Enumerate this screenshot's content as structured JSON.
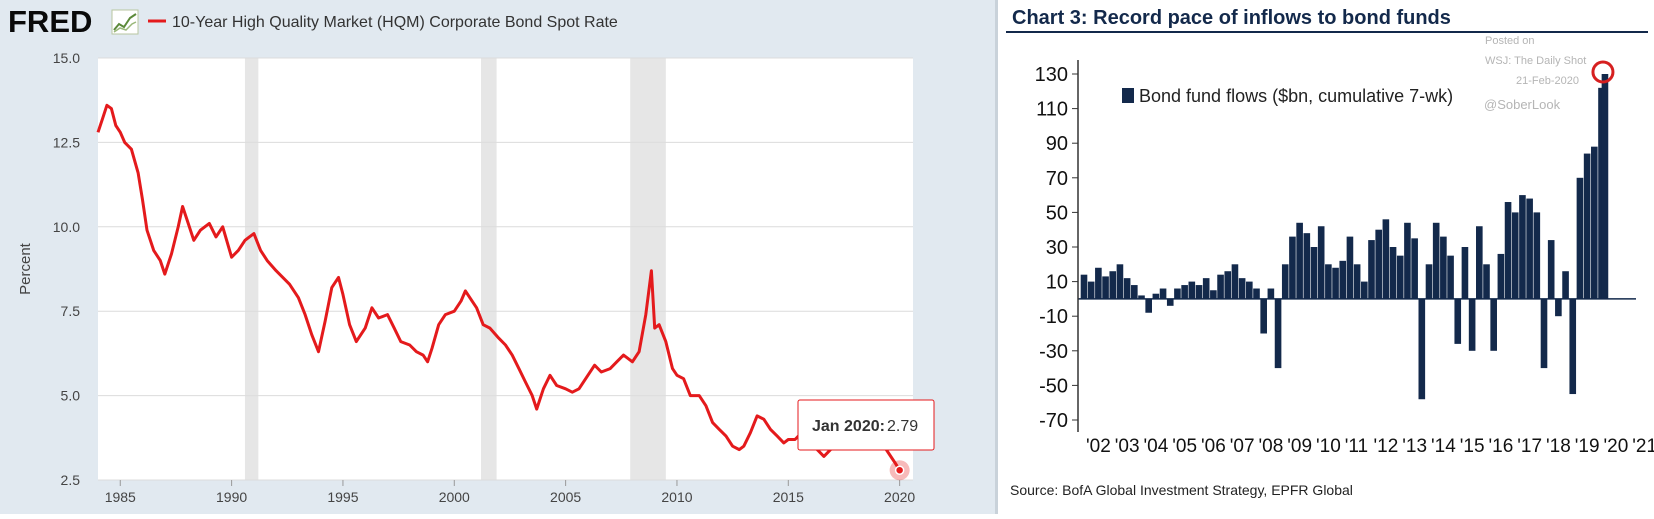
{
  "fred": {
    "logo_text": "FRED",
    "series_title": "10-Year High Quality Market (HQM) Corporate Bond Spot Rate",
    "tooltip": {
      "label": "Jan 2020:",
      "value": "2.79"
    }
  },
  "bofa": {
    "title": "Chart 3: Record pace of inflows to bond funds",
    "legend": "Bond fund flows ($bn, cumulative 7-wk)",
    "watermark": [
      "Posted on",
      "WSJ: The Daily Shot",
      "21-Feb-2020",
      "@SoberLook"
    ],
    "source": "Source:  BofA Global Investment Strategy, EPFR Global"
  },
  "chart_data": [
    {
      "type": "line",
      "title": "10-Year High Quality Market (HQM) Corporate Bond Spot Rate",
      "xlabel": "",
      "ylabel": "Percent",
      "xlim": [
        1984,
        2020.6
      ],
      "ylim": [
        2.5,
        15.0
      ],
      "x_ticks": [
        "1985",
        "1990",
        "1995",
        "2000",
        "2005",
        "2010",
        "2015",
        "2020"
      ],
      "y_ticks": [
        "2.5",
        "5.0",
        "7.5",
        "10.0",
        "12.5",
        "15.0"
      ],
      "grid": true,
      "color": "#e41a1c",
      "recessions": [
        [
          1990.6,
          1991.2
        ],
        [
          2001.2,
          2001.9
        ],
        [
          2007.9,
          2009.5
        ]
      ],
      "series": [
        {
          "x": [
            1984.0,
            1984.2,
            1984.4,
            1984.6,
            1984.8,
            1985.0,
            1985.2,
            1985.5,
            1985.8,
            1986.0,
            1986.2,
            1986.5,
            1986.8,
            1987.0,
            1987.3,
            1987.6,
            1987.8,
            1988.0,
            1988.3,
            1988.6,
            1989.0,
            1989.3,
            1989.6,
            1990.0,
            1990.3,
            1990.6,
            1990.8,
            1991.0,
            1991.3,
            1991.6,
            1992.0,
            1992.3,
            1992.6,
            1993.0,
            1993.3,
            1993.6,
            1993.9,
            1994.2,
            1994.5,
            1994.8,
            1995.0,
            1995.3,
            1995.6,
            1996.0,
            1996.3,
            1996.6,
            1997.0,
            1997.3,
            1997.6,
            1998.0,
            1998.3,
            1998.6,
            1998.8,
            1999.0,
            1999.3,
            1999.6,
            2000.0,
            2000.3,
            2000.5,
            2000.8,
            2001.0,
            2001.3,
            2001.6,
            2002.0,
            2002.3,
            2002.6,
            2002.9,
            2003.2,
            2003.5,
            2003.7,
            2004.0,
            2004.3,
            2004.6,
            2005.0,
            2005.3,
            2005.6,
            2006.0,
            2006.3,
            2006.6,
            2007.0,
            2007.3,
            2007.6,
            2008.0,
            2008.3,
            2008.6,
            2008.85,
            2009.0,
            2009.2,
            2009.5,
            2009.8,
            2010.0,
            2010.3,
            2010.6,
            2011.0,
            2011.3,
            2011.6,
            2011.9,
            2012.2,
            2012.5,
            2012.8,
            2013.0,
            2013.3,
            2013.6,
            2013.9,
            2014.2,
            2014.5,
            2014.8,
            2015.0,
            2015.3,
            2015.6,
            2016.0,
            2016.3,
            2016.6,
            2016.9,
            2017.2,
            2017.5,
            2017.8,
            2018.1,
            2018.4,
            2018.7,
            2018.9,
            2019.2,
            2019.5,
            2019.8,
            2020.0
          ],
          "y": [
            12.8,
            13.2,
            13.6,
            13.5,
            13.0,
            12.8,
            12.5,
            12.3,
            11.6,
            10.8,
            9.9,
            9.3,
            9.0,
            8.6,
            9.2,
            10.0,
            10.6,
            10.2,
            9.6,
            9.9,
            10.1,
            9.7,
            10.0,
            9.1,
            9.3,
            9.6,
            9.7,
            9.8,
            9.3,
            9.0,
            8.7,
            8.5,
            8.3,
            7.9,
            7.4,
            6.8,
            6.3,
            7.2,
            8.2,
            8.5,
            8.0,
            7.1,
            6.6,
            7.0,
            7.6,
            7.3,
            7.4,
            7.0,
            6.6,
            6.5,
            6.3,
            6.2,
            6.0,
            6.4,
            7.1,
            7.4,
            7.5,
            7.8,
            8.1,
            7.8,
            7.6,
            7.1,
            7.0,
            6.7,
            6.5,
            6.2,
            5.8,
            5.4,
            5.0,
            4.6,
            5.2,
            5.6,
            5.3,
            5.2,
            5.1,
            5.2,
            5.6,
            5.9,
            5.7,
            5.8,
            6.0,
            6.2,
            6.0,
            6.3,
            7.4,
            8.7,
            7.0,
            7.1,
            6.6,
            5.8,
            5.6,
            5.5,
            5.0,
            5.0,
            4.7,
            4.2,
            4.0,
            3.8,
            3.5,
            3.4,
            3.5,
            3.9,
            4.4,
            4.3,
            4.0,
            3.8,
            3.6,
            3.7,
            3.7,
            3.9,
            3.8,
            3.4,
            3.2,
            3.4,
            3.6,
            3.5,
            3.6,
            3.7,
            3.8,
            4.0,
            3.9,
            3.6,
            3.3,
            3.0,
            2.79
          ]
        }
      ]
    },
    {
      "type": "bar",
      "title": "Chart 3: Record pace of inflows to bond funds",
      "xlabel": "",
      "ylabel": "",
      "xlim": [
        2002,
        2021.2
      ],
      "ylim": [
        -70,
        130
      ],
      "x_ticks": [
        "'02",
        "'03",
        "'04",
        "'05",
        "'06",
        "'07",
        "'08",
        "'09",
        "'10",
        "'11",
        "'12",
        "'13",
        "'14",
        "'15",
        "'16",
        "'17",
        "'18",
        "'19",
        "'20",
        "'21"
      ],
      "y_ticks": [
        "130",
        "110",
        "90",
        "70",
        "50",
        "30",
        "10",
        "-10",
        "-30",
        "-50",
        "-70"
      ],
      "grid": false,
      "legend": "top-left",
      "color": "#13294b",
      "series": [
        {
          "name": "Bond fund flows ($bn, cumulative 7-wk)",
          "x": [
            2002.0,
            2002.25,
            2002.5,
            2002.75,
            2003.0,
            2003.25,
            2003.5,
            2003.75,
            2004.0,
            2004.25,
            2004.5,
            2004.75,
            2005.0,
            2005.25,
            2005.5,
            2005.75,
            2006.0,
            2006.25,
            2006.5,
            2006.75,
            2007.0,
            2007.25,
            2007.5,
            2007.75,
            2008.0,
            2008.25,
            2008.5,
            2008.75,
            2009.0,
            2009.25,
            2009.5,
            2009.75,
            2010.0,
            2010.25,
            2010.5,
            2010.75,
            2011.0,
            2011.25,
            2011.5,
            2011.75,
            2012.0,
            2012.25,
            2012.5,
            2012.75,
            2013.0,
            2013.25,
            2013.5,
            2013.75,
            2014.0,
            2014.25,
            2014.5,
            2014.75,
            2015.0,
            2015.25,
            2015.5,
            2015.75,
            2016.0,
            2016.25,
            2016.5,
            2016.75,
            2017.0,
            2017.25,
            2017.5,
            2017.75,
            2018.0,
            2018.25,
            2018.5,
            2018.75,
            2019.0,
            2019.25,
            2019.5,
            2019.75,
            2020.0,
            2020.12
          ],
          "values": [
            14,
            10,
            18,
            13,
            16,
            20,
            12,
            8,
            2,
            -8,
            3,
            6,
            -4,
            6,
            8,
            10,
            8,
            12,
            5,
            14,
            16,
            20,
            12,
            10,
            6,
            -20,
            6,
            -40,
            20,
            36,
            44,
            38,
            30,
            42,
            20,
            18,
            22,
            36,
            20,
            10,
            34,
            40,
            46,
            30,
            25,
            44,
            35,
            -58,
            20,
            44,
            36,
            25,
            -26,
            30,
            -30,
            42,
            20,
            -30,
            26,
            56,
            50,
            60,
            58,
            50,
            -40,
            34,
            -10,
            16,
            -55,
            70,
            84,
            88,
            122,
            130
          ]
        }
      ]
    }
  ]
}
